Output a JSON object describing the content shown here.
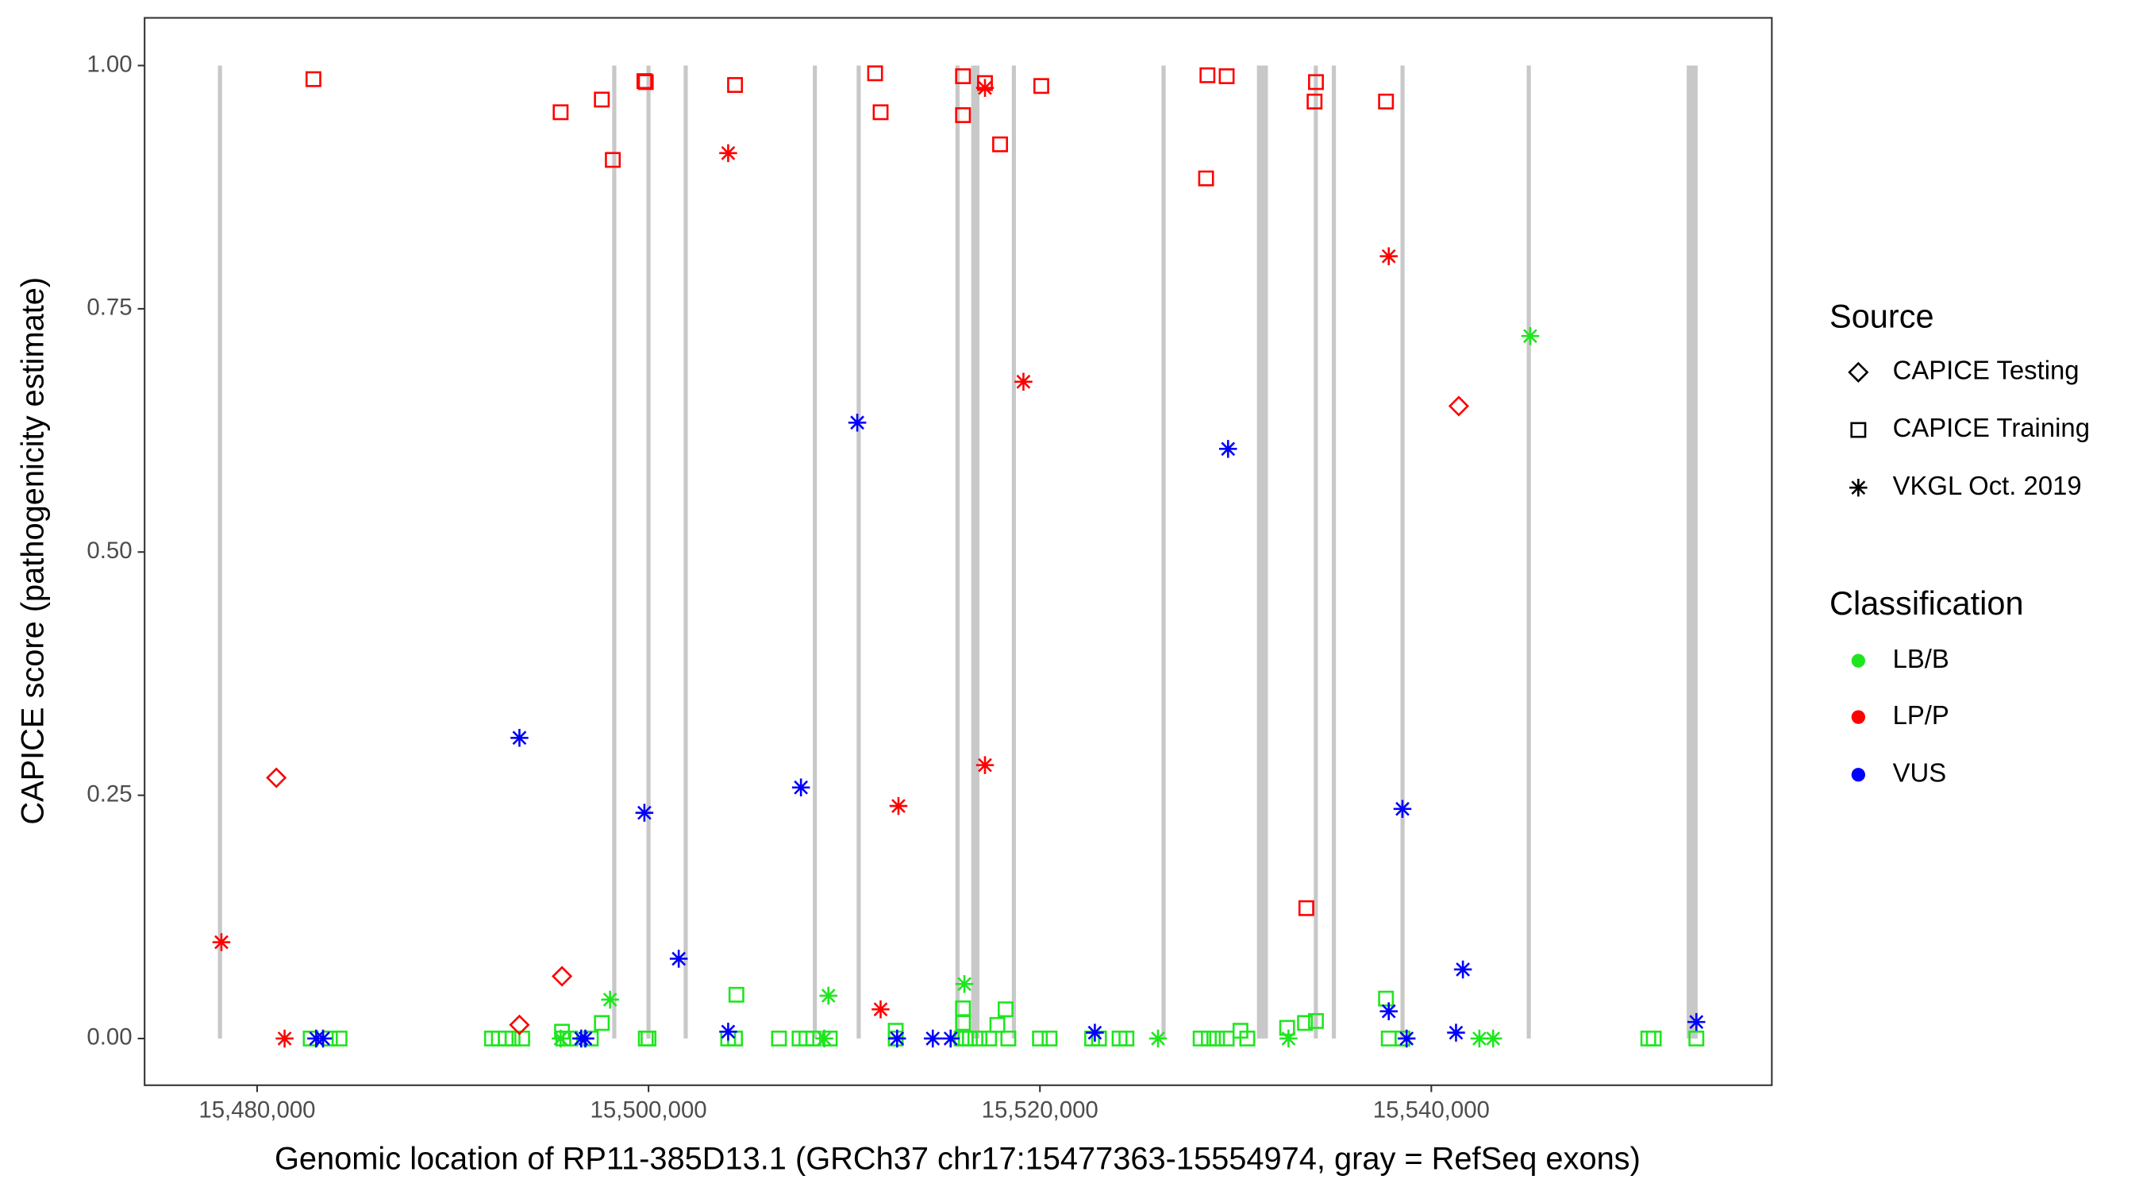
{
  "chart_data": {
    "type": "scatter",
    "x_label": "Genomic location of RP11-385D13.1 (GRCh37 chr17:15477363-15554974, gray = RefSeq exons)",
    "y_label": "CAPICE score (pathogenicity estimate)",
    "xlim": [
      15474250,
      15557400
    ],
    "ylim": [
      -0.048,
      1.049
    ],
    "xticks": [
      {
        "value": 15480000,
        "label": "15,480,000"
      },
      {
        "value": 15500000,
        "label": "15,500,000"
      },
      {
        "value": 15520000,
        "label": "15,520,000"
      },
      {
        "value": 15540000,
        "label": "15,540,000"
      }
    ],
    "yticks": [
      {
        "value": 0,
        "label": "0.00"
      },
      {
        "value": 0.25,
        "label": "0.25"
      },
      {
        "value": 0.5,
        "label": "0.50"
      },
      {
        "value": 0.75,
        "label": "0.75"
      },
      {
        "value": 1,
        "label": "1.00"
      }
    ],
    "exon_color": "#c8c8c8",
    "exons": [
      [
        15478000,
        15478200
      ],
      [
        15498150,
        15498350
      ],
      [
        15499900,
        15500100
      ],
      [
        15501800,
        15502000
      ],
      [
        15508400,
        15508600
      ],
      [
        15510640,
        15510840
      ],
      [
        15515690,
        15515890
      ],
      [
        15516490,
        15516910
      ],
      [
        15518570,
        15518770
      ],
      [
        15526220,
        15526420
      ],
      [
        15531090,
        15531650
      ],
      [
        15534000,
        15534200
      ],
      [
        15534920,
        15535120
      ],
      [
        15538430,
        15538630
      ],
      [
        15544880,
        15545080
      ],
      [
        15553050,
        15553610
      ]
    ],
    "legends": {
      "source": {
        "title": "Source",
        "items": [
          {
            "name": "CAPICE Testing",
            "shape": "diamond"
          },
          {
            "name": "CAPICE Training",
            "shape": "square"
          },
          {
            "name": "VKGL Oct. 2019",
            "shape": "asterisk"
          }
        ]
      },
      "classification": {
        "title": "Classification",
        "items": [
          {
            "name": "LB/B",
            "color": "#1ee61e"
          },
          {
            "name": "LP/P",
            "color": "#ff0000"
          },
          {
            "name": "VUS",
            "color": "#0000ff"
          }
        ]
      }
    },
    "series": [
      {
        "source": "CAPICE Training",
        "classification": "LB/B",
        "x": [
          15482737,
          15483719,
          15484211,
          15492000,
          15492351,
          15492702,
          15493053,
          15493544,
          15495649,
          15496000,
          15497053,
          15499860,
          15500000,
          15504070,
          15504421,
          15506667,
          15507719,
          15508070,
          15508421,
          15509263,
          15512632,
          15516000,
          15516211,
          15516421,
          15516912,
          15517404,
          15518386,
          15520000,
          15520491,
          15522667,
          15523018,
          15524070,
          15524421,
          15528211,
          15528632,
          15529053,
          15529544,
          15530596,
          15537825,
          15538526,
          15551088,
          15551368,
          15553544,
          15497614,
          15504491,
          15512632,
          15516070,
          15516070,
          15518246,
          15517825,
          15530246,
          15532632,
          15533544,
          15534105,
          15537684,
          15495579
        ],
        "y": [
          0,
          0,
          0,
          0,
          0,
          0,
          0,
          0,
          0,
          0,
          0,
          0,
          0,
          0,
          0,
          0,
          0,
          0,
          0,
          0,
          0,
          0,
          0,
          0,
          0,
          0,
          0,
          0,
          0,
          0,
          0,
          0,
          0,
          0,
          0,
          0,
          0,
          0,
          0,
          0,
          0,
          0,
          0,
          0.016,
          0.045,
          0.008,
          0.031,
          0.016,
          0.03,
          0.014,
          0.008,
          0.011,
          0.016,
          0.018,
          0.041,
          0.007
        ]
      },
      {
        "source": "VKGL Oct. 2019",
        "classification": "LB/B",
        "x": [
          15498035,
          15509193,
          15516140,
          15526035,
          15532702,
          15542456,
          15543158,
          15545053,
          15508982,
          15495509
        ],
        "y": [
          0.04,
          0.044,
          0.056,
          0,
          0,
          0,
          0,
          0.722,
          0,
          0
        ]
      },
      {
        "source": "CAPICE Training",
        "classification": "LP/P",
        "x": [
          15482877,
          15495509,
          15497614,
          15498175,
          15499789,
          15499860,
          15504421,
          15511579,
          15511860,
          15516070,
          15516070,
          15517193,
          15517965,
          15520070,
          15528561,
          15528491,
          15529544,
          15534035,
          15534105,
          15533614,
          15537684
        ],
        "y": [
          0.986,
          0.952,
          0.965,
          0.903,
          0.984,
          0.983,
          0.98,
          0.992,
          0.952,
          0.989,
          0.949,
          0.982,
          0.919,
          0.979,
          0.99,
          0.884,
          0.989,
          0.963,
          0.983,
          0.134,
          0.963
        ]
      },
      {
        "source": "VKGL Oct. 2019",
        "classification": "LP/P",
        "x": [
          15478175,
          15481404,
          15504070,
          15512772,
          15511860,
          15517193,
          15517193,
          15519158,
          15537825
        ],
        "y": [
          0.099,
          0,
          0.91,
          0.239,
          0.03,
          0.281,
          0.977,
          0.675,
          0.804
        ]
      },
      {
        "source": "CAPICE Testing",
        "classification": "LP/P",
        "x": [
          15480982,
          15493404,
          15495579,
          15541404
        ],
        "y": [
          0.268,
          0.014,
          0.064,
          0.65
        ]
      },
      {
        "source": "VKGL Oct. 2019",
        "classification": "VUS",
        "x": [
          15493404,
          15499789,
          15501544,
          15504070,
          15507789,
          15510667,
          15512702,
          15514526,
          15515439,
          15522807,
          15529614,
          15537825,
          15538526,
          15538737,
          15541263,
          15541614,
          15553544,
          15483018,
          15483369,
          15496561,
          15496772
        ],
        "y": [
          0.309,
          0.232,
          0.082,
          0.007,
          0.258,
          0.633,
          0,
          0,
          0,
          0.006,
          0.606,
          0.028,
          0.236,
          0,
          0.006,
          0.071,
          0.017,
          0,
          0,
          0,
          0
        ]
      }
    ]
  }
}
